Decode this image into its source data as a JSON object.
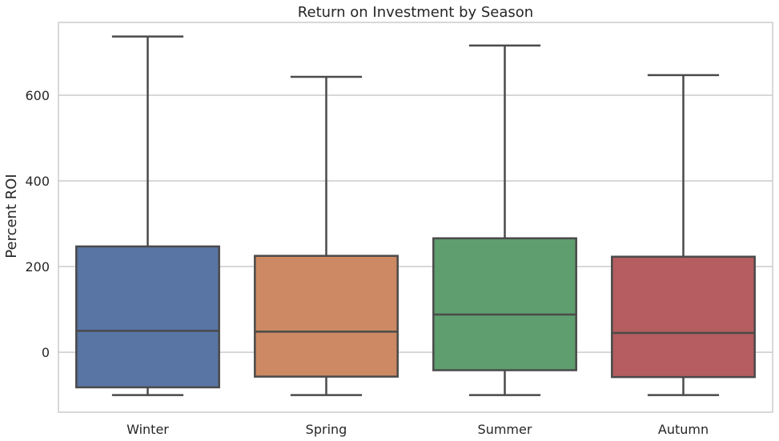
{
  "chart_data": {
    "type": "box",
    "title": "Return on Investment by Season",
    "xlabel": "",
    "ylabel": "Percent ROI",
    "ylim": [
      -140,
      770
    ],
    "yticks": [
      0,
      200,
      400,
      600
    ],
    "grid": true,
    "categories": [
      "Winter",
      "Spring",
      "Summer",
      "Autumn"
    ],
    "boxes": [
      {
        "category": "Winter",
        "min": -100,
        "q1": -82,
        "median": 50,
        "q3": 247,
        "max": 737,
        "color": "#5875a4"
      },
      {
        "category": "Spring",
        "min": -100,
        "q1": -57,
        "median": 48,
        "q3": 225,
        "max": 643,
        "color": "#cc8963"
      },
      {
        "category": "Summer",
        "min": -100,
        "q1": -42,
        "median": 88,
        "q3": 266,
        "max": 716,
        "color": "#5f9e6e"
      },
      {
        "category": "Autumn",
        "min": -100,
        "q1": -58,
        "median": 45,
        "q3": 223,
        "max": 647,
        "color": "#b55d60"
      }
    ],
    "box_line_color": "#4a4a4a",
    "grid_color": "#cccccc"
  }
}
